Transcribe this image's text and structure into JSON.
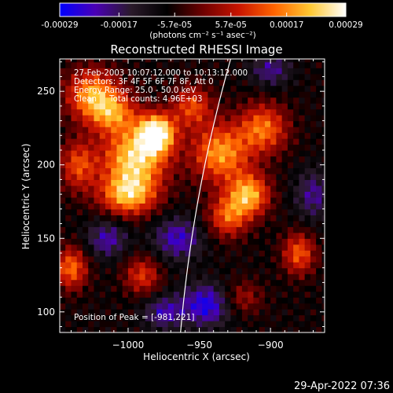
{
  "chart_data": {
    "type": "heatmap",
    "title": "Reconstructed RHESSI Image",
    "xlabel": "Heliocentric X (arcsec)",
    "ylabel": "Heliocentric Y (arcsec)",
    "xlim": [
      -1048,
      -862
    ],
    "ylim": [
      86,
      272
    ],
    "x_ticks": [
      -1000,
      -950,
      -900
    ],
    "x_tick_labels": [
      "−1000",
      "−950",
      "−900"
    ],
    "y_ticks": [
      100,
      150,
      200,
      250
    ],
    "y_tick_labels": [
      "100",
      "150",
      "200",
      "250"
    ],
    "colorbar": {
      "ticks": [
        -0.00029,
        -0.00017,
        -5.7e-05,
        5.7e-05,
        0.00017,
        0.00029
      ],
      "tick_labels": [
        "-0.00029",
        "-0.00017",
        "-5.7e-05",
        "5.7e-05",
        "0.00017",
        "0.00029"
      ],
      "unit": "(photons cm⁻² s⁻¹ asec⁻²)",
      "colormap": [
        "#0000ff",
        "#4a00b4",
        "#2a1a2a",
        "#000000",
        "#6e0000",
        "#c81400",
        "#ff6400",
        "#ffc832",
        "#ffffff"
      ]
    },
    "annotations": [
      "27-Feb-2003 10:07:12.000 to 10:13:12.000",
      "Detectors: 3F 4F 5F 6F 7F 8F, Att 0",
      "Energy Range: 25.0 - 50.0 keV",
      "Clean     Total counts: 4.96E+03"
    ],
    "peak_label": "Position of Peak = [-981,221]",
    "peak": [
      -981,
      221
    ],
    "limb_color": "#ffffff",
    "grid": false,
    "grid_step_arcsec": 4,
    "blobs": [
      {
        "x": -980,
        "y": 222,
        "amp": 1.0,
        "sx": 9,
        "sy": 9
      },
      {
        "x": -995,
        "y": 205,
        "amp": 0.85,
        "sx": 16,
        "sy": 14
      },
      {
        "x": -1025,
        "y": 248,
        "amp": 0.7,
        "sx": 13,
        "sy": 12
      },
      {
        "x": -1010,
        "y": 235,
        "amp": 0.55,
        "sx": 12,
        "sy": 10
      },
      {
        "x": -955,
        "y": 240,
        "amp": 0.5,
        "sx": 10,
        "sy": 10
      },
      {
        "x": -935,
        "y": 208,
        "amp": 0.7,
        "sx": 14,
        "sy": 14
      },
      {
        "x": -905,
        "y": 225,
        "amp": 0.6,
        "sx": 12,
        "sy": 12
      },
      {
        "x": -915,
        "y": 180,
        "amp": 0.75,
        "sx": 10,
        "sy": 10
      },
      {
        "x": -930,
        "y": 165,
        "amp": 0.55,
        "sx": 10,
        "sy": 10
      },
      {
        "x": -1000,
        "y": 180,
        "amp": 0.75,
        "sx": 14,
        "sy": 10
      },
      {
        "x": -1035,
        "y": 200,
        "amp": 0.5,
        "sx": 9,
        "sy": 12
      },
      {
        "x": -1040,
        "y": 130,
        "amp": 0.6,
        "sx": 8,
        "sy": 10
      },
      {
        "x": -990,
        "y": 125,
        "amp": 0.45,
        "sx": 9,
        "sy": 9
      },
      {
        "x": -880,
        "y": 140,
        "amp": 0.55,
        "sx": 8,
        "sy": 10
      },
      {
        "x": -920,
        "y": 110,
        "amp": 0.3,
        "sx": 10,
        "sy": 8
      },
      {
        "x": -965,
        "y": 150,
        "amp": -0.45,
        "sx": 12,
        "sy": 10
      },
      {
        "x": -945,
        "y": 105,
        "amp": -0.55,
        "sx": 12,
        "sy": 10
      },
      {
        "x": -975,
        "y": 100,
        "amp": -0.4,
        "sx": 10,
        "sy": 8
      },
      {
        "x": -870,
        "y": 180,
        "amp": -0.35,
        "sx": 9,
        "sy": 12
      },
      {
        "x": -1015,
        "y": 150,
        "amp": -0.4,
        "sx": 10,
        "sy": 9
      },
      {
        "x": -900,
        "y": 265,
        "amp": -0.35,
        "sx": 10,
        "sy": 8
      }
    ]
  },
  "footer": {
    "timestamp": "29-Apr-2022 07:36"
  }
}
